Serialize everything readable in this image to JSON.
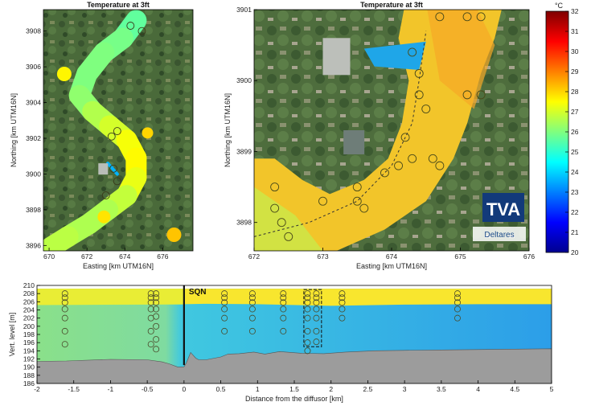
{
  "chart_data": [
    {
      "type": "heatmap",
      "panel": "map-left",
      "title": "Temperature at 3ft",
      "xlabel": "Easting [km UTM16N]",
      "ylabel": "Northing [km UTM16N]",
      "xlim": [
        669.7,
        677.6
      ],
      "ylim": [
        3895.7,
        3909.2
      ],
      "xticks": [
        670,
        672,
        674,
        676
      ],
      "yticks": [
        3896,
        3898,
        3900,
        3902,
        3904,
        3906,
        3908
      ],
      "river_centerline": [
        [
          674.6,
          3908.6
        ],
        [
          673.9,
          3907.6
        ],
        [
          672.9,
          3906.8
        ],
        [
          672.0,
          3905.6
        ],
        [
          671.6,
          3904.4
        ],
        [
          672.3,
          3903.5
        ],
        [
          673.2,
          3902.7
        ],
        [
          674.1,
          3901.9
        ],
        [
          674.6,
          3900.9
        ],
        [
          674.6,
          3899.8
        ],
        [
          674.1,
          3898.8
        ],
        [
          673.1,
          3898.0
        ],
        [
          672.1,
          3897.2
        ],
        [
          671.0,
          3896.5
        ],
        [
          670.1,
          3895.9
        ]
      ],
      "river_temps": [
        25.5,
        25.8,
        26.0,
        26.0,
        26.0,
        26.4,
        26.8,
        27.2,
        27.6,
        27.5,
        27.0,
        26.6,
        26.5,
        26.6,
        26.8
      ],
      "plant_inlet": [
        [
          673.1,
          3900.6
        ],
        [
          673.6,
          3900.0
        ]
      ],
      "stations": [
        [
          674.3,
          3908.3
        ],
        [
          674.9,
          3908.0
        ],
        [
          673.6,
          3902.4
        ],
        [
          673.3,
          3902.1
        ],
        [
          673.4,
          3900.3
        ],
        [
          673.6,
          3899.6
        ],
        [
          673.0,
          3898.8
        ]
      ]
    },
    {
      "type": "heatmap",
      "panel": "map-right",
      "title": "Temperature at 3ft",
      "xlabel": "Easting [km UTM16N]",
      "ylabel": "",
      "xlim": [
        672,
        676
      ],
      "ylim": [
        3897.6,
        3901.0
      ],
      "xticks": [
        672,
        673,
        674,
        675,
        676
      ],
      "yticks": [
        3898,
        3899,
        3900,
        3901
      ],
      "plume_source": [
        674.3,
        3900.3
      ],
      "stations": [
        [
          674.7,
          3900.9
        ],
        [
          675.1,
          3900.9
        ],
        [
          675.3,
          3900.9
        ],
        [
          674.3,
          3900.4
        ],
        [
          674.4,
          3900.1
        ],
        [
          674.4,
          3899.8
        ],
        [
          674.5,
          3899.6
        ],
        [
          675.1,
          3899.8
        ],
        [
          675.3,
          3899.8
        ],
        [
          674.2,
          3899.2
        ],
        [
          674.3,
          3898.9
        ],
        [
          674.6,
          3898.9
        ],
        [
          674.7,
          3898.8
        ],
        [
          674.1,
          3898.8
        ],
        [
          673.9,
          3898.7
        ],
        [
          672.3,
          3898.5
        ],
        [
          672.3,
          3898.2
        ],
        [
          672.4,
          3898.0
        ],
        [
          672.5,
          3897.8
        ],
        [
          673.0,
          3898.3
        ],
        [
          673.5,
          3898.5
        ],
        [
          673.5,
          3898.3
        ],
        [
          673.6,
          3898.2
        ]
      ],
      "diffuser_line": [
        [
          672.0,
          3897.8
        ],
        [
          672.8,
          3898.0
        ],
        [
          673.5,
          3898.3
        ],
        [
          674.0,
          3898.8
        ],
        [
          674.3,
          3899.4
        ],
        [
          674.4,
          3900.0
        ],
        [
          674.5,
          3900.7
        ]
      ],
      "logos": [
        "TVA",
        "Deltares"
      ]
    },
    {
      "type": "heatmap",
      "panel": "colorbar",
      "unit": "°C",
      "range": [
        20,
        32
      ],
      "ticks": [
        20,
        21,
        22,
        23,
        24,
        25,
        26,
        27,
        28,
        29,
        30,
        31,
        32
      ]
    },
    {
      "type": "heatmap",
      "panel": "cross-section",
      "xlabel": "Distance from the diffusor [km]",
      "ylabel": "Vert. level [m]",
      "xlim": [
        -2,
        5
      ],
      "ylim": [
        186,
        210
      ],
      "xticks": [
        -2,
        -1.5,
        -1,
        -0.5,
        0,
        0.5,
        1,
        1.5,
        2,
        2.5,
        3,
        3.5,
        4,
        4.5,
        5
      ],
      "yticks": [
        186,
        188,
        190,
        192,
        194,
        196,
        198,
        200,
        202,
        204,
        206,
        208,
        210
      ],
      "annotation": "SQN",
      "surface_level": 209.2,
      "bed_profile": [
        [
          -2,
          191.4
        ],
        [
          -1.6,
          191.5
        ],
        [
          -1.0,
          191.9
        ],
        [
          -0.5,
          191.8
        ],
        [
          -0.3,
          191.3
        ],
        [
          -0.2,
          190.8
        ],
        [
          -0.08,
          190.0
        ],
        [
          0.0,
          190.1
        ],
        [
          0.03,
          191.0
        ],
        [
          0.09,
          193.6
        ],
        [
          0.12,
          193.0
        ],
        [
          0.16,
          192.2
        ],
        [
          0.2,
          191.8
        ],
        [
          0.3,
          191.8
        ],
        [
          0.5,
          192.5
        ],
        [
          0.6,
          193.2
        ],
        [
          0.75,
          193.3
        ],
        [
          0.95,
          193.7
        ],
        [
          1.1,
          193.2
        ],
        [
          1.3,
          193.8
        ],
        [
          1.6,
          193.4
        ],
        [
          1.9,
          193.3
        ],
        [
          2.2,
          193.7
        ],
        [
          2.6,
          194.0
        ],
        [
          3.0,
          194.1
        ],
        [
          3.5,
          194.2
        ],
        [
          4.0,
          194.3
        ],
        [
          4.5,
          194.4
        ],
        [
          5.0,
          194.5
        ]
      ],
      "warm_layer": [
        [
          -2,
          205.2
        ],
        [
          0.0,
          205.4
        ],
        [
          0.3,
          205.5
        ],
        [
          1.0,
          205.4
        ],
        [
          2.0,
          205.0
        ],
        [
          3.0,
          205.3
        ],
        [
          4.0,
          205.4
        ],
        [
          5.0,
          205.4
        ]
      ],
      "profiles": [
        {
          "x": -1.62,
          "levels": [
            208.0,
            207.0,
            205.8,
            204.2,
            202.0,
            198.8,
            195.6
          ]
        },
        {
          "x": -0.45,
          "levels": [
            208.0,
            207.0,
            205.8,
            204.2,
            202.0,
            198.8,
            195.6
          ]
        },
        {
          "x": -0.38,
          "levels": [
            208.0,
            207.0,
            205.8,
            204.2,
            202.4,
            200.0,
            196.8,
            194.4
          ]
        },
        {
          "x": 0.55,
          "levels": [
            208.0,
            207.0,
            205.8,
            204.2,
            202.0,
            198.8
          ]
        },
        {
          "x": 0.93,
          "levels": [
            208.0,
            207.0,
            205.8,
            204.2,
            202.0,
            198.8
          ]
        },
        {
          "x": 1.35,
          "levels": [
            208.0,
            207.0,
            205.8,
            204.2,
            202.0,
            198.8
          ]
        },
        {
          "x": 1.68,
          "levels": [
            208.0,
            207.0,
            205.8,
            204.2,
            202.0,
            198.8,
            196.0,
            194.0
          ]
        },
        {
          "x": 1.8,
          "levels": [
            208.0,
            207.0,
            205.8,
            204.2,
            202.0,
            198.8,
            196.2
          ]
        },
        {
          "x": 2.15,
          "levels": [
            208.0,
            207.0,
            205.8,
            204.2,
            202.0
          ]
        },
        {
          "x": 3.72,
          "levels": [
            208.0,
            207.0,
            205.8,
            204.2,
            202.0
          ]
        }
      ],
      "highlight_box": {
        "x": [
          1.63,
          1.87
        ],
        "y": [
          195.0,
          209.0
        ]
      }
    }
  ],
  "colors": {
    "land_dark": "#3f5e34",
    "land_light": "#6b8a52",
    "water_cool": "#20c0e8",
    "water_warm": "#f6c02c",
    "bed": "#9c9c9c"
  }
}
